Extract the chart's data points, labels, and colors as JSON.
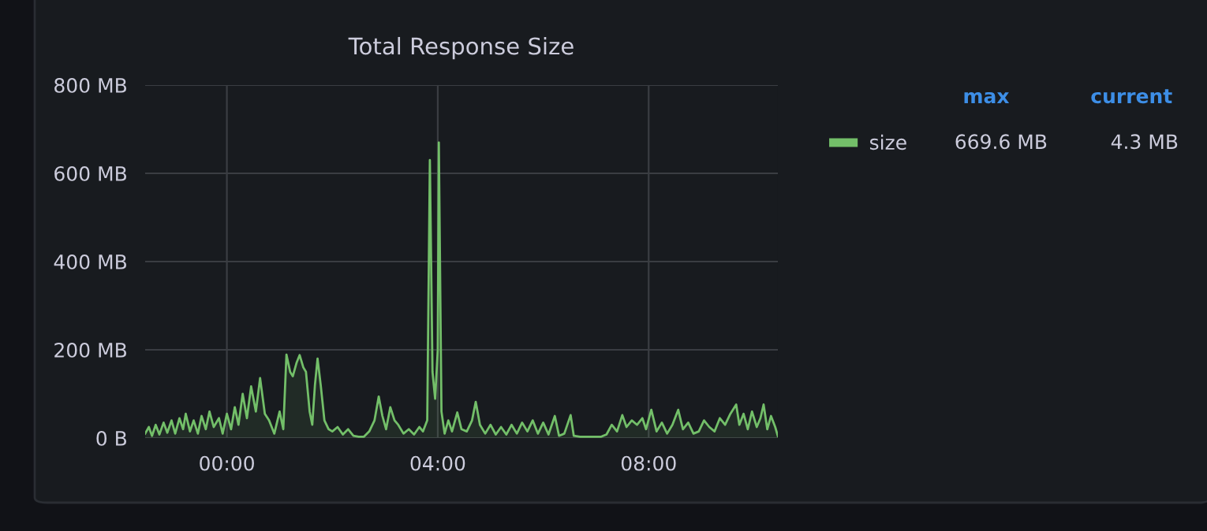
{
  "chart_data": {
    "type": "area",
    "title": "Total Response Size",
    "xlim": [
      -1.55,
      10.45
    ],
    "xticks": [
      {
        "value": 0,
        "label": "00:00"
      },
      {
        "value": 4,
        "label": "04:00"
      },
      {
        "value": 8,
        "label": "08:00"
      }
    ],
    "ylim": [
      0,
      800
    ],
    "yticks": [
      {
        "value": 0,
        "label": "0 B"
      },
      {
        "value": 200,
        "label": "200 MB"
      },
      {
        "value": 400,
        "label": "400 MB"
      },
      {
        "value": 600,
        "label": "600 MB"
      },
      {
        "value": 800,
        "label": "800 MB"
      }
    ],
    "grid": true,
    "legend": "right",
    "marker": "none",
    "line_style": "solid",
    "annotations": [
      "max",
      "current",
      "669.6 MB",
      "4.3 MB"
    ],
    "series": [
      {
        "name": "size",
        "color": "#73bf69",
        "x": [
          -1.55,
          -1.48,
          -1.42,
          -1.35,
          -1.28,
          -1.2,
          -1.13,
          -1.05,
          -0.98,
          -0.9,
          -0.83,
          -0.78,
          -0.7,
          -0.63,
          -0.55,
          -0.48,
          -0.4,
          -0.33,
          -0.25,
          -0.15,
          -0.08,
          0.0,
          0.08,
          0.15,
          0.22,
          0.3,
          0.38,
          0.46,
          0.55,
          0.63,
          0.72,
          0.8,
          0.9,
          1.0,
          1.07,
          1.13,
          1.2,
          1.25,
          1.32,
          1.38,
          1.45,
          1.5,
          1.57,
          1.62,
          1.67,
          1.72,
          1.78,
          1.85,
          1.93,
          2.0,
          2.1,
          2.2,
          2.3,
          2.4,
          2.5,
          2.6,
          2.7,
          2.8,
          2.88,
          2.95,
          3.02,
          3.1,
          3.18,
          3.25,
          3.35,
          3.45,
          3.55,
          3.65,
          3.72,
          3.8,
          3.85,
          3.9,
          3.95,
          4.0,
          4.02,
          4.07,
          4.13,
          4.2,
          4.27,
          4.37,
          4.45,
          4.55,
          4.65,
          4.72,
          4.8,
          4.9,
          5.0,
          5.1,
          5.2,
          5.3,
          5.4,
          5.5,
          5.6,
          5.7,
          5.8,
          5.9,
          6.0,
          6.1,
          6.22,
          6.3,
          6.4,
          6.52,
          6.58,
          6.7,
          6.85,
          7.0,
          7.1,
          7.2,
          7.3,
          7.4,
          7.5,
          7.58,
          7.68,
          7.78,
          7.88,
          7.95,
          8.05,
          8.15,
          8.25,
          8.35,
          8.45,
          8.56,
          8.65,
          8.75,
          8.85,
          8.95,
          9.05,
          9.15,
          9.25,
          9.35,
          9.45,
          9.55,
          9.66,
          9.72,
          9.8,
          9.88,
          9.96,
          10.05,
          10.12,
          10.18,
          10.25,
          10.32,
          10.4,
          10.45
        ],
        "values": [
          10,
          25,
          5,
          30,
          8,
          35,
          12,
          40,
          10,
          45,
          20,
          55,
          15,
          40,
          10,
          50,
          20,
          60,
          25,
          45,
          10,
          55,
          20,
          70,
          30,
          100,
          45,
          117,
          60,
          136,
          55,
          40,
          10,
          60,
          20,
          189,
          150,
          140,
          170,
          188,
          160,
          150,
          60,
          30,
          120,
          180,
          120,
          40,
          20,
          15,
          25,
          8,
          20,
          5,
          3,
          3,
          15,
          40,
          94,
          50,
          20,
          70,
          40,
          30,
          10,
          20,
          8,
          25,
          15,
          40,
          630,
          150,
          89,
          200,
          670,
          60,
          10,
          40,
          15,
          58,
          20,
          15,
          40,
          82,
          30,
          10,
          30,
          8,
          25,
          8,
          30,
          10,
          35,
          15,
          40,
          10,
          35,
          8,
          50,
          5,
          10,
          52,
          5,
          3,
          3,
          3,
          3,
          8,
          30,
          15,
          52,
          25,
          40,
          30,
          45,
          20,
          64,
          15,
          35,
          10,
          30,
          64,
          20,
          35,
          10,
          15,
          40,
          25,
          15,
          45,
          30,
          55,
          76,
          30,
          55,
          20,
          60,
          25,
          45,
          76,
          20,
          50,
          25,
          4.3
        ]
      }
    ]
  }
}
